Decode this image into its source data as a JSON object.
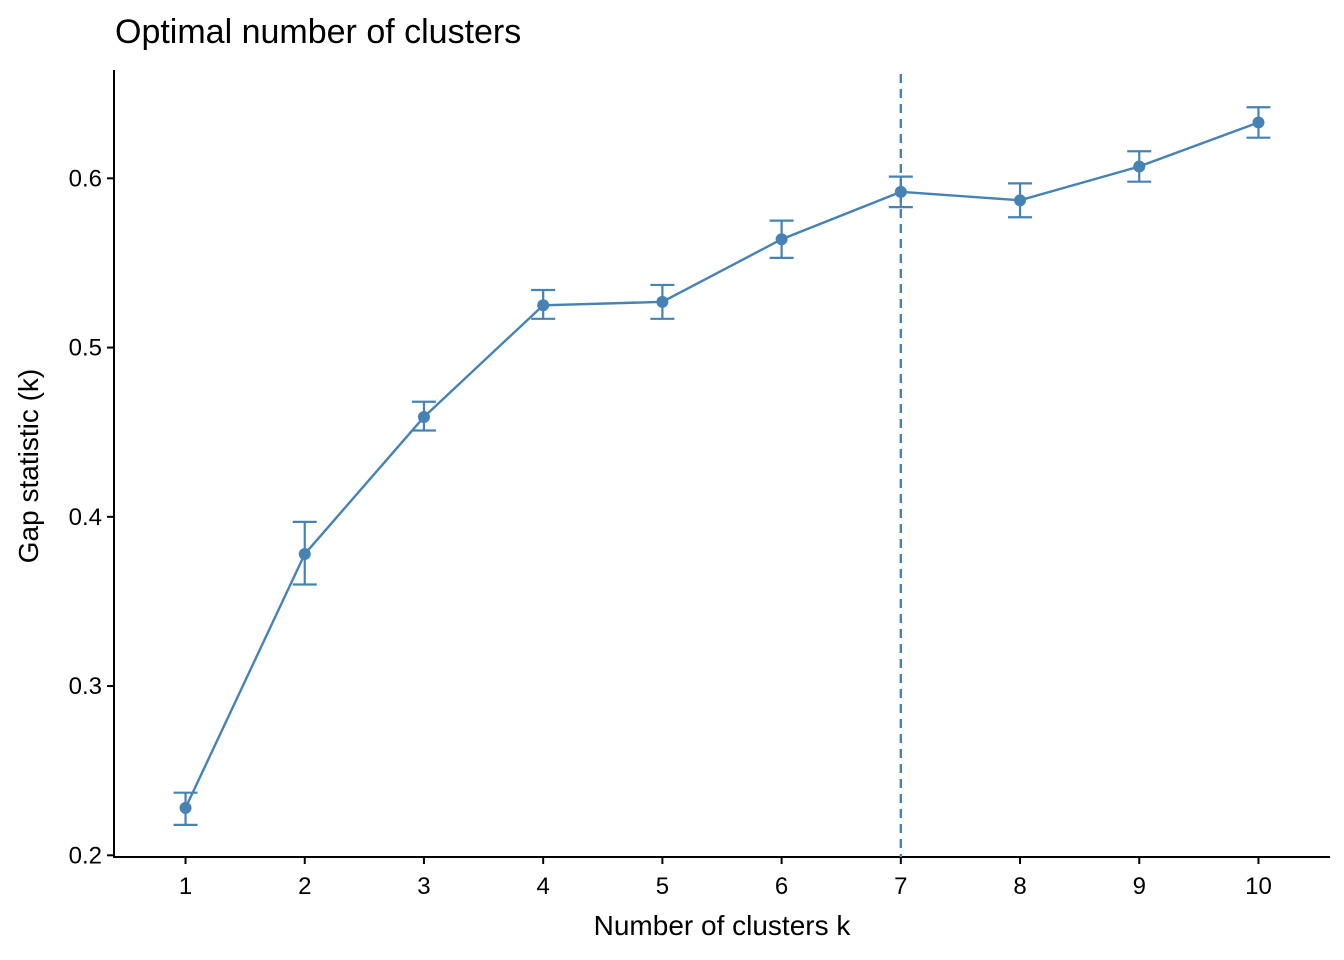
{
  "chart_data": {
    "type": "line",
    "title": "Optimal number of clusters",
    "xlabel": "Number of clusters k",
    "ylabel": "Gap statistic (k)",
    "x": [
      1,
      2,
      3,
      4,
      5,
      6,
      7,
      8,
      9,
      10
    ],
    "x_tick_labels": [
      "1",
      "2",
      "3",
      "4",
      "5",
      "6",
      "7",
      "8",
      "9",
      "10"
    ],
    "y_tick_labels": [
      "0.2",
      "0.3",
      "0.4",
      "0.5",
      "0.6"
    ],
    "y_ticks": [
      0.2,
      0.3,
      0.4,
      0.5,
      0.6
    ],
    "xlim": [
      0.4,
      10.6
    ],
    "ylim": [
      0.199,
      0.664
    ],
    "series": [
      {
        "values": [
          0.228,
          0.378,
          0.459,
          0.525,
          0.527,
          0.564,
          0.592,
          0.587,
          0.607,
          0.633
        ],
        "error_low": [
          0.218,
          0.36,
          0.451,
          0.517,
          0.517,
          0.553,
          0.583,
          0.577,
          0.598,
          0.624
        ],
        "error_high": [
          0.237,
          0.397,
          0.468,
          0.534,
          0.537,
          0.575,
          0.601,
          0.597,
          0.616,
          0.642
        ]
      }
    ],
    "optimal_k": 7,
    "color": "#4682B4",
    "grid": false,
    "legend": "none"
  }
}
